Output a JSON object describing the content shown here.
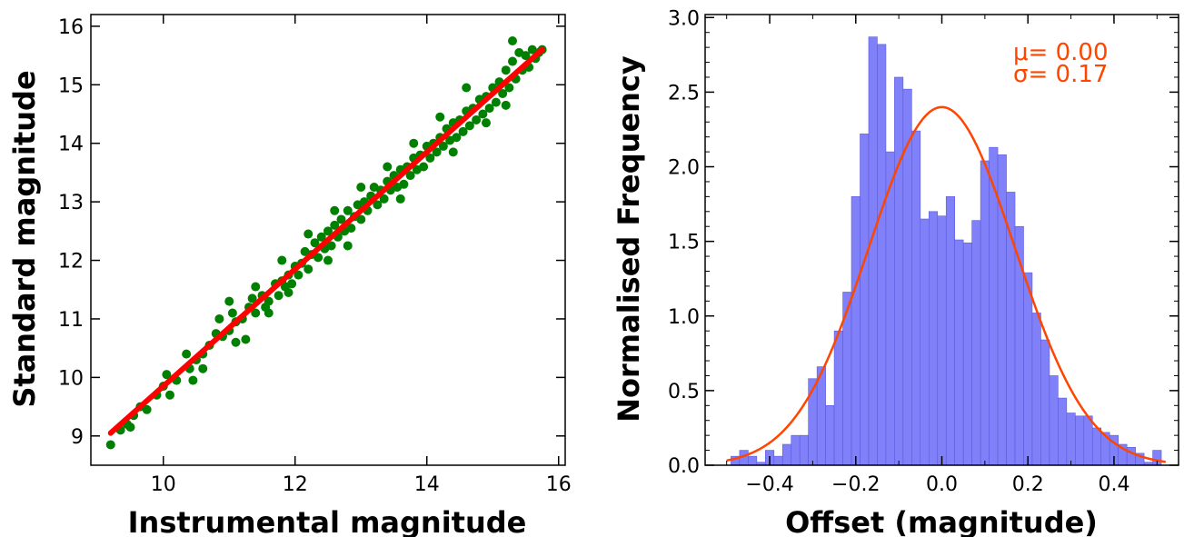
{
  "chart_data": [
    {
      "type": "scatter",
      "xlabel": "Instrumental magnitude",
      "ylabel": "Standard magnitude",
      "xlim": [
        8.9,
        16.1
      ],
      "ylim": [
        8.5,
        16.2
      ],
      "xticks": [
        10,
        12,
        14,
        16
      ],
      "yticks": [
        9,
        10,
        11,
        12,
        13,
        14,
        15,
        16
      ],
      "grid": false,
      "points_color": "#008000",
      "fit_color": "#ff0000",
      "fit_line": {
        "slope": 1.0,
        "intercept": -0.15,
        "x_range": [
          9.2,
          15.75
        ]
      },
      "points": [
        {
          "x": 9.2,
          "y": 8.85
        },
        {
          "x": 9.35,
          "y": 9.1
        },
        {
          "x": 9.45,
          "y": 9.2
        },
        {
          "x": 9.5,
          "y": 9.15
        },
        {
          "x": 9.55,
          "y": 9.35
        },
        {
          "x": 9.65,
          "y": 9.5
        },
        {
          "x": 9.75,
          "y": 9.45
        },
        {
          "x": 9.9,
          "y": 9.7
        },
        {
          "x": 10.0,
          "y": 9.85
        },
        {
          "x": 10.05,
          "y": 10.05
        },
        {
          "x": 10.1,
          "y": 9.7
        },
        {
          "x": 10.2,
          "y": 9.95
        },
        {
          "x": 10.35,
          "y": 10.4
        },
        {
          "x": 10.4,
          "y": 10.15
        },
        {
          "x": 10.45,
          "y": 9.95
        },
        {
          "x": 10.5,
          "y": 10.3
        },
        {
          "x": 10.6,
          "y": 10.4
        },
        {
          "x": 10.7,
          "y": 10.55
        },
        {
          "x": 10.8,
          "y": 10.75
        },
        {
          "x": 10.85,
          "y": 11.0
        },
        {
          "x": 10.9,
          "y": 10.7
        },
        {
          "x": 11.0,
          "y": 10.8
        },
        {
          "x": 11.05,
          "y": 11.1
        },
        {
          "x": 11.1,
          "y": 10.95
        },
        {
          "x": 11.2,
          "y": 11.0
        },
        {
          "x": 11.25,
          "y": 10.65
        },
        {
          "x": 11.3,
          "y": 11.2
        },
        {
          "x": 11.35,
          "y": 11.35
        },
        {
          "x": 11.4,
          "y": 11.1
        },
        {
          "x": 11.5,
          "y": 11.4
        },
        {
          "x": 11.55,
          "y": 11.2
        },
        {
          "x": 11.6,
          "y": 11.3
        },
        {
          "x": 11.7,
          "y": 11.6
        },
        {
          "x": 11.75,
          "y": 11.4
        },
        {
          "x": 11.8,
          "y": 11.65
        },
        {
          "x": 11.85,
          "y": 11.55
        },
        {
          "x": 11.9,
          "y": 11.75
        },
        {
          "x": 11.95,
          "y": 11.6
        },
        {
          "x": 12.0,
          "y": 11.9
        },
        {
          "x": 12.05,
          "y": 11.75
        },
        {
          "x": 12.1,
          "y": 11.95
        },
        {
          "x": 12.15,
          "y": 12.15
        },
        {
          "x": 12.2,
          "y": 11.85
        },
        {
          "x": 12.25,
          "y": 12.1
        },
        {
          "x": 12.3,
          "y": 12.3
        },
        {
          "x": 12.35,
          "y": 12.05
        },
        {
          "x": 12.4,
          "y": 12.4
        },
        {
          "x": 12.45,
          "y": 12.2
        },
        {
          "x": 12.5,
          "y": 12.5
        },
        {
          "x": 12.55,
          "y": 12.25
        },
        {
          "x": 12.6,
          "y": 12.6
        },
        {
          "x": 12.65,
          "y": 12.4
        },
        {
          "x": 12.7,
          "y": 12.7
        },
        {
          "x": 12.75,
          "y": 12.5
        },
        {
          "x": 12.8,
          "y": 12.85
        },
        {
          "x": 12.85,
          "y": 12.55
        },
        {
          "x": 12.9,
          "y": 12.75
        },
        {
          "x": 12.95,
          "y": 12.95
        },
        {
          "x": 13.0,
          "y": 12.7
        },
        {
          "x": 13.05,
          "y": 13.0
        },
        {
          "x": 13.1,
          "y": 12.85
        },
        {
          "x": 13.15,
          "y": 13.1
        },
        {
          "x": 13.2,
          "y": 13.25
        },
        {
          "x": 13.25,
          "y": 12.95
        },
        {
          "x": 13.3,
          "y": 13.2
        },
        {
          "x": 13.35,
          "y": 13.05
        },
        {
          "x": 13.4,
          "y": 13.35
        },
        {
          "x": 13.45,
          "y": 13.2
        },
        {
          "x": 13.5,
          "y": 13.45
        },
        {
          "x": 13.55,
          "y": 13.25
        },
        {
          "x": 13.6,
          "y": 13.55
        },
        {
          "x": 13.65,
          "y": 13.3
        },
        {
          "x": 13.7,
          "y": 13.6
        },
        {
          "x": 13.75,
          "y": 13.45
        },
        {
          "x": 13.8,
          "y": 13.75
        },
        {
          "x": 13.85,
          "y": 13.55
        },
        {
          "x": 13.9,
          "y": 13.8
        },
        {
          "x": 13.95,
          "y": 13.6
        },
        {
          "x": 14.0,
          "y": 13.95
        },
        {
          "x": 14.05,
          "y": 13.75
        },
        {
          "x": 14.1,
          "y": 14.0
        },
        {
          "x": 14.15,
          "y": 13.85
        },
        {
          "x": 14.2,
          "y": 14.1
        },
        {
          "x": 14.25,
          "y": 13.95
        },
        {
          "x": 14.3,
          "y": 14.25
        },
        {
          "x": 14.35,
          "y": 14.05
        },
        {
          "x": 14.4,
          "y": 14.35
        },
        {
          "x": 14.45,
          "y": 14.1
        },
        {
          "x": 14.5,
          "y": 14.4
        },
        {
          "x": 14.55,
          "y": 14.2
        },
        {
          "x": 14.6,
          "y": 14.55
        },
        {
          "x": 14.65,
          "y": 14.3
        },
        {
          "x": 14.7,
          "y": 14.6
        },
        {
          "x": 14.75,
          "y": 14.4
        },
        {
          "x": 14.8,
          "y": 14.75
        },
        {
          "x": 14.85,
          "y": 14.5
        },
        {
          "x": 14.9,
          "y": 14.8
        },
        {
          "x": 14.95,
          "y": 14.6
        },
        {
          "x": 15.0,
          "y": 14.95
        },
        {
          "x": 15.05,
          "y": 14.7
        },
        {
          "x": 15.1,
          "y": 15.05
        },
        {
          "x": 15.15,
          "y": 14.85
        },
        {
          "x": 15.2,
          "y": 15.25
        },
        {
          "x": 15.25,
          "y": 14.95
        },
        {
          "x": 15.3,
          "y": 15.4
        },
        {
          "x": 15.35,
          "y": 15.1
        },
        {
          "x": 15.4,
          "y": 15.55
        },
        {
          "x": 15.45,
          "y": 15.25
        },
        {
          "x": 15.5,
          "y": 15.5
        },
        {
          "x": 15.55,
          "y": 15.3
        },
        {
          "x": 15.6,
          "y": 15.6
        },
        {
          "x": 15.65,
          "y": 15.45
        },
        {
          "x": 15.7,
          "y": 15.55
        },
        {
          "x": 15.75,
          "y": 15.6
        },
        {
          "x": 15.3,
          "y": 15.75
        },
        {
          "x": 14.6,
          "y": 14.95
        },
        {
          "x": 14.2,
          "y": 14.45
        },
        {
          "x": 13.8,
          "y": 14.0
        },
        {
          "x": 13.4,
          "y": 13.6
        },
        {
          "x": 13.0,
          "y": 13.25
        },
        {
          "x": 12.6,
          "y": 12.85
        },
        {
          "x": 12.2,
          "y": 12.45
        },
        {
          "x": 11.8,
          "y": 12.0
        },
        {
          "x": 11.4,
          "y": 11.55
        },
        {
          "x": 11.0,
          "y": 11.3
        },
        {
          "x": 14.4,
          "y": 13.85
        },
        {
          "x": 14.9,
          "y": 14.35
        },
        {
          "x": 15.2,
          "y": 14.65
        },
        {
          "x": 13.6,
          "y": 13.05
        },
        {
          "x": 12.8,
          "y": 12.25
        },
        {
          "x": 12.5,
          "y": 12.0
        },
        {
          "x": 11.9,
          "y": 11.45
        },
        {
          "x": 11.6,
          "y": 11.1
        },
        {
          "x": 11.1,
          "y": 10.6
        },
        {
          "x": 10.6,
          "y": 10.15
        }
      ]
    },
    {
      "type": "bar",
      "xlabel": "Offset (magnitude)",
      "ylabel": "Normalised Frequency",
      "xlim": [
        -0.55,
        0.55
      ],
      "ylim": [
        0,
        3.02
      ],
      "xticks": [
        "−0.4",
        "−0.2",
        "0.0",
        "0.2",
        "0.4"
      ],
      "xtick_values": [
        -0.4,
        -0.2,
        0.0,
        0.2,
        0.4
      ],
      "yticks": [
        "0.0",
        "0.5",
        "1.0",
        "1.5",
        "2.0",
        "2.5",
        "3.0"
      ],
      "ytick_values": [
        0,
        0.5,
        1.0,
        1.5,
        2.0,
        2.5,
        3.0
      ],
      "grid": false,
      "bar_color": "#8080f8",
      "bar_edge_color": "#5a5ae0",
      "curve_color": "#ff4500",
      "bin_width": 0.02,
      "bins": [
        {
          "x": -0.48,
          "y": 0.06
        },
        {
          "x": -0.46,
          "y": 0.1
        },
        {
          "x": -0.44,
          "y": 0.06
        },
        {
          "x": -0.42,
          "y": 0.02
        },
        {
          "x": -0.4,
          "y": 0.1
        },
        {
          "x": -0.38,
          "y": 0.06
        },
        {
          "x": -0.36,
          "y": 0.14
        },
        {
          "x": -0.34,
          "y": 0.2
        },
        {
          "x": -0.32,
          "y": 0.2
        },
        {
          "x": -0.3,
          "y": 0.58
        },
        {
          "x": -0.28,
          "y": 0.66
        },
        {
          "x": -0.26,
          "y": 0.4
        },
        {
          "x": -0.24,
          "y": 0.9
        },
        {
          "x": -0.22,
          "y": 1.16
        },
        {
          "x": -0.2,
          "y": 1.8
        },
        {
          "x": -0.18,
          "y": 2.22
        },
        {
          "x": -0.16,
          "y": 2.87
        },
        {
          "x": -0.14,
          "y": 2.82
        },
        {
          "x": -0.12,
          "y": 2.1
        },
        {
          "x": -0.1,
          "y": 2.6
        },
        {
          "x": -0.08,
          "y": 2.52
        },
        {
          "x": -0.06,
          "y": 2.24
        },
        {
          "x": -0.04,
          "y": 1.65
        },
        {
          "x": -0.02,
          "y": 1.7
        },
        {
          "x": 0.0,
          "y": 1.67
        },
        {
          "x": 0.02,
          "y": 1.8
        },
        {
          "x": 0.04,
          "y": 1.51
        },
        {
          "x": 0.06,
          "y": 1.49
        },
        {
          "x": 0.08,
          "y": 1.64
        },
        {
          "x": 0.1,
          "y": 2.04
        },
        {
          "x": 0.12,
          "y": 2.13
        },
        {
          "x": 0.14,
          "y": 2.08
        },
        {
          "x": 0.16,
          "y": 1.83
        },
        {
          "x": 0.18,
          "y": 1.6
        },
        {
          "x": 0.2,
          "y": 1.29
        },
        {
          "x": 0.22,
          "y": 1.02
        },
        {
          "x": 0.24,
          "y": 0.84
        },
        {
          "x": 0.26,
          "y": 0.6
        },
        {
          "x": 0.28,
          "y": 0.45
        },
        {
          "x": 0.3,
          "y": 0.35
        },
        {
          "x": 0.32,
          "y": 0.33
        },
        {
          "x": 0.34,
          "y": 0.33
        },
        {
          "x": 0.36,
          "y": 0.25
        },
        {
          "x": 0.38,
          "y": 0.22
        },
        {
          "x": 0.4,
          "y": 0.2
        },
        {
          "x": 0.42,
          "y": 0.14
        },
        {
          "x": 0.44,
          "y": 0.12
        },
        {
          "x": 0.46,
          "y": 0.08
        },
        {
          "x": 0.48,
          "y": 0.02
        },
        {
          "x": 0.5,
          "y": 0.1
        }
      ],
      "gaussian": {
        "mu": 0.0,
        "sigma": 0.17,
        "peak": 2.4,
        "x_range": [
          -0.5,
          0.52
        ]
      },
      "annotations": [
        "μ= 0.00",
        "σ= 0.17"
      ],
      "annotation_color": "#ff4500"
    }
  ]
}
